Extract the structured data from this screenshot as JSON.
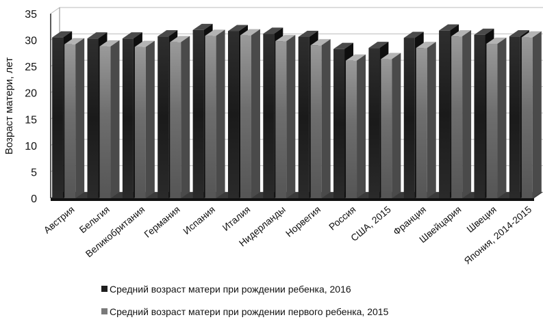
{
  "chart_data": {
    "type": "bar",
    "categories": [
      "Австрия",
      "Бельгия",
      "Великобритания",
      "Германия",
      "Испания",
      "Италия",
      "Нидерланды",
      "Норвегия",
      "Россия",
      "США, 2015",
      "Франция",
      "Швейцария",
      "Швеция",
      "Япония, 2014-2015"
    ],
    "series": [
      {
        "name": "Средний возраст матери при рождении ребенка, 2016",
        "values": [
          30.5,
          30.3,
          30.3,
          30.7,
          31.9,
          31.7,
          31.2,
          30.6,
          28.3,
          28.5,
          30.4,
          31.8,
          31.0,
          30.7
        ],
        "color": "#1e1e1e"
      },
      {
        "name": "Средний возраст матери при рождении первого ребенка, 2015",
        "values": [
          29.2,
          28.8,
          28.7,
          29.6,
          30.8,
          30.9,
          29.8,
          29.0,
          26.1,
          26.4,
          28.5,
          30.7,
          29.3,
          30.5
        ],
        "color": "#7a7a7a"
      }
    ],
    "ylabel": "Возраст матери, лет",
    "xlabel": "",
    "ylim": [
      0,
      35
    ],
    "yticks": [
      0,
      5,
      10,
      15,
      20,
      25,
      30,
      35
    ],
    "grid": true,
    "legend_position": "bottom"
  }
}
